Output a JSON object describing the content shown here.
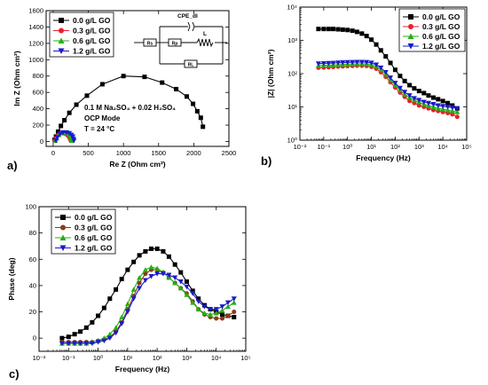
{
  "chart_data": [
    {
      "panel_label": "a)",
      "type": "scatter",
      "xlabel": "Re Z (Ohm cm²)",
      "ylabel": "Im Z (Ohm cm²)",
      "xlim": [
        -100,
        2500
      ],
      "ylim": [
        -60,
        1600
      ],
      "xticks": [
        0,
        500,
        1000,
        1500,
        2000,
        2500
      ],
      "yticks": [
        0,
        200,
        400,
        600,
        800,
        1000,
        1200,
        1400,
        1600
      ],
      "tick_labels_x": [
        "0",
        "500",
        "1000",
        "1500",
        "2000",
        "2500"
      ],
      "tick_labels_y": [
        "0",
        "200",
        "400",
        "600",
        "800",
        "1000",
        "1200",
        "1400",
        "1600"
      ],
      "legend": [
        "0.0 g/L GO",
        "0.3 g/L GO",
        "0.6 g/L GO",
        "1.2 g/L GO"
      ],
      "legend_placement": "top-left",
      "annotations": [
        "0.1 M Na₂SO₄ + 0.02 H₂SO₄",
        "OCP Mode",
        "T = 24 °C"
      ],
      "circuit_labels": [
        "CPE_dl",
        "Rs",
        "Rp",
        "L",
        "RL"
      ],
      "series": [
        {
          "name": "0.0 g/L GO",
          "color": "#000000",
          "marker": "square",
          "x": [
            20,
            40,
            70,
            110,
            160,
            230,
            330,
            480,
            700,
            1000,
            1300,
            1550,
            1750,
            1900,
            1990,
            2050,
            2100,
            2130
          ],
          "y": [
            20,
            60,
            120,
            190,
            260,
            350,
            450,
            560,
            700,
            800,
            790,
            720,
            640,
            550,
            460,
            370,
            290,
            180
          ]
        },
        {
          "name": "0.3 g/L GO",
          "color": "#e8202a",
          "marker": "circle",
          "x": [
            20,
            40,
            70,
            100,
            140,
            180,
            210,
            230,
            240,
            250
          ],
          "y": [
            10,
            40,
            80,
            100,
            100,
            90,
            70,
            50,
            30,
            10
          ]
        },
        {
          "name": "0.6 g/L GO",
          "color": "#22b014",
          "marker": "triangle-up",
          "x": [
            30,
            50,
            80,
            120,
            160,
            200,
            230,
            250,
            260,
            265
          ],
          "y": [
            10,
            40,
            80,
            110,
            110,
            100,
            80,
            50,
            30,
            10
          ]
        },
        {
          "name": "1.2 g/L GO",
          "color": "#1a1acc",
          "marker": "triangle-down",
          "x": [
            40,
            60,
            100,
            140,
            190,
            230,
            260,
            280,
            290,
            295
          ],
          "y": [
            10,
            50,
            90,
            110,
            110,
            100,
            80,
            60,
            30,
            10
          ]
        }
      ]
    },
    {
      "panel_label": "b)",
      "type": "line",
      "xlabel": "Frequency (Hz)",
      "ylabel": "|Z| (Ohm cm²)",
      "x_scale": "log",
      "y_scale": "log",
      "xlim": [
        0.01,
        100000
      ],
      "ylim": [
        1,
        10000
      ],
      "tick_labels_x": [
        "10⁻²",
        "10⁻¹",
        "10⁰",
        "10¹",
        "10²",
        "10³",
        "10⁴",
        "10⁵"
      ],
      "tick_labels_y": [
        "10⁰",
        "10¹",
        "10²",
        "10³",
        "10⁴"
      ],
      "legend": [
        "0.0 g/L GO",
        "0.3 g/L GO",
        "0.6 g/L GO",
        "1.2 g/L GO"
      ],
      "legend_placement": "top-right",
      "x": [
        0.06,
        0.1,
        0.16,
        0.25,
        0.4,
        0.63,
        1,
        1.6,
        2.5,
        4,
        6.3,
        10,
        16,
        25,
        40,
        63,
        100,
        160,
        250,
        400,
        630,
        1000,
        1600,
        2500,
        4000,
        6300,
        10000,
        16000,
        25000,
        40000
      ],
      "series": [
        {
          "name": "0.0 g/L GO",
          "color": "#000000",
          "marker": "square",
          "values": [
            2200,
            2200,
            2200,
            2200,
            2150,
            2100,
            2050,
            1950,
            1800,
            1600,
            1350,
            1050,
            750,
            500,
            330,
            210,
            130,
            85,
            60,
            45,
            36,
            30,
            26,
            22,
            19,
            17,
            15,
            13,
            11,
            9
          ]
        },
        {
          "name": "0.3 g/L GO",
          "color": "#e8202a",
          "marker": "circle",
          "values": [
            150,
            152,
            155,
            158,
            162,
            165,
            168,
            170,
            172,
            172,
            170,
            160,
            140,
            110,
            80,
            55,
            38,
            27,
            20,
            15,
            13,
            11,
            10,
            9,
            8,
            7.5,
            7,
            6.5,
            6,
            5
          ]
        },
        {
          "name": "0.6 g/L GO",
          "color": "#22b014",
          "marker": "triangle-up",
          "values": [
            175,
            178,
            180,
            183,
            186,
            190,
            192,
            195,
            196,
            197,
            195,
            185,
            165,
            130,
            95,
            65,
            45,
            32,
            24,
            19,
            16,
            14,
            12,
            11,
            10,
            9,
            8.5,
            8,
            7.5,
            7
          ]
        },
        {
          "name": "1.2 g/L GO",
          "color": "#1a1acc",
          "marker": "triangle-down",
          "values": [
            200,
            203,
            205,
            208,
            212,
            215,
            218,
            220,
            222,
            223,
            220,
            210,
            185,
            150,
            110,
            75,
            52,
            37,
            28,
            22,
            18,
            16,
            14,
            13,
            12,
            11,
            10.5,
            10,
            9.5,
            9
          ]
        }
      ]
    },
    {
      "panel_label": "c)",
      "type": "line",
      "xlabel": "Frequency (Hz)",
      "ylabel": "Phase (deg)",
      "x_scale": "log",
      "xlim": [
        0.01,
        100000
      ],
      "ylim": [
        -10,
        100
      ],
      "yticks": [
        0,
        20,
        40,
        60,
        80,
        100
      ],
      "tick_labels_x": [
        "10⁻²",
        "10⁻¹",
        "10⁰",
        "10¹",
        "10²",
        "10³",
        "10⁴",
        "10⁵"
      ],
      "tick_labels_y": [
        "0",
        "20",
        "40",
        "60",
        "80",
        "100"
      ],
      "legend": [
        "0.0 g/L GO",
        "0.3 g/L GO",
        "0.6 g/L GO",
        "1.2 g/L GO"
      ],
      "legend_placement": "top-left",
      "x": [
        0.06,
        0.1,
        0.16,
        0.25,
        0.4,
        0.63,
        1,
        1.6,
        2.5,
        4,
        6.3,
        10,
        16,
        25,
        40,
        63,
        100,
        160,
        250,
        400,
        630,
        1000,
        1600,
        2500,
        4000,
        6300,
        10000,
        16000,
        25000,
        40000
      ],
      "series": [
        {
          "name": "0.0 g/L GO",
          "color": "#000000",
          "marker": "square",
          "values": [
            0,
            1,
            3,
            5,
            8,
            12,
            17,
            23,
            30,
            37,
            45,
            52,
            58,
            63,
            66,
            68,
            68,
            66,
            62,
            56,
            50,
            43,
            36,
            30,
            25,
            22,
            20,
            18,
            17,
            16
          ]
        },
        {
          "name": "0.3 g/L GO",
          "color": "#8b3a1a",
          "marker": "circle",
          "values": [
            -3,
            -3,
            -3,
            -3,
            -3,
            -3,
            -2,
            -1,
            1,
            5,
            12,
            22,
            32,
            42,
            49,
            52,
            52,
            50,
            46,
            42,
            38,
            34,
            28,
            22,
            18,
            16,
            15,
            15,
            17,
            20
          ]
        },
        {
          "name": "0.6 g/L GO",
          "color": "#22b014",
          "marker": "triangle-up",
          "values": [
            -4,
            -4,
            -4,
            -4,
            -4,
            -3,
            -2,
            0,
            3,
            8,
            16,
            26,
            37,
            46,
            52,
            54,
            53,
            50,
            46,
            42,
            38,
            33,
            27,
            22,
            19,
            18,
            19,
            21,
            24,
            27
          ]
        },
        {
          "name": "1.2 g/L GO",
          "color": "#1a1acc",
          "marker": "triangle-down",
          "values": [
            -4,
            -4,
            -4,
            -4,
            -4,
            -4,
            -3,
            -2,
            0,
            4,
            11,
            20,
            30,
            38,
            44,
            47,
            49,
            49,
            48,
            46,
            43,
            39,
            34,
            28,
            24,
            22,
            22,
            24,
            27,
            30
          ]
        }
      ]
    }
  ]
}
